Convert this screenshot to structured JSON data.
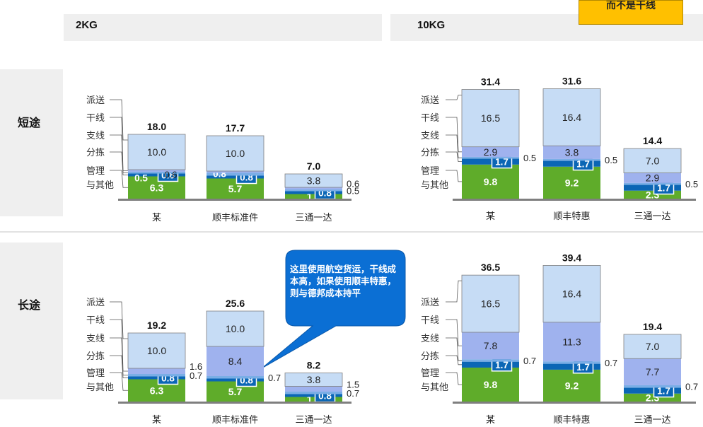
{
  "header": {
    "note": "而不是干线",
    "columns": [
      "2KG",
      "10KG"
    ],
    "rows": [
      "短途",
      "长途"
    ]
  },
  "legend_labels": [
    "派送",
    "干线",
    "支线",
    "分拣",
    "管理",
    "与其他"
  ],
  "callout": "这里使用航空货运，干线成本高，如果使用顺丰特惠，则与德邦成本持平",
  "colors": {
    "mgmt": "#5fac2a",
    "sort": "#0b66b5",
    "branch": "#7aaee6",
    "trunk": "#9fb2ee",
    "delivery": "#c6dcf5",
    "baseline": "#7f7f7f",
    "callout": "#0b6fd4"
  },
  "chart_data": [
    {
      "type": "bar",
      "stacked": true,
      "panel": "2KG-短途",
      "categories": [
        "某",
        "顺丰标准件",
        "三通一达"
      ],
      "totals": [
        "18.0",
        "17.7",
        "7.0"
      ],
      "series": [
        {
          "key": "mgmt",
          "values": [
            6.3,
            5.7,
            1.3
          ],
          "labels": [
            "6.3",
            "5.7",
            "1.3"
          ]
        },
        {
          "key": "sort",
          "values": [
            0.8,
            0.8,
            0.8
          ],
          "labels": [
            "0.8",
            "0.8",
            "0.8"
          ]
        },
        {
          "key": "branch",
          "values": [
            0.5,
            0.8,
            0.5
          ],
          "labels": [
            "0.5",
            "0.8",
            "0.5"
          ]
        },
        {
          "key": "trunk",
          "values": [
            0.6,
            0.5,
            0.6
          ],
          "labels": [
            "0.6",
            "0.5",
            "0.6"
          ]
        },
        {
          "key": "delivery",
          "values": [
            10.0,
            10.0,
            3.8
          ],
          "labels": [
            "10.0",
            "10.0",
            "3.8"
          ]
        }
      ]
    },
    {
      "type": "bar",
      "stacked": true,
      "panel": "10KG-短途",
      "categories": [
        "某",
        "顺丰特惠",
        "三通一达"
      ],
      "totals": [
        "31.4",
        "31.6",
        "14.4"
      ],
      "series": [
        {
          "key": "mgmt",
          "values": [
            9.8,
            9.2,
            2.3
          ],
          "labels": [
            "9.8",
            "9.2",
            "2.3"
          ]
        },
        {
          "key": "sort",
          "values": [
            1.7,
            1.7,
            1.7
          ],
          "labels": [
            "1.7",
            "1.7",
            "1.7"
          ]
        },
        {
          "key": "branch",
          "values": [
            0.5,
            0.5,
            0.5
          ],
          "labels": [
            "0.5",
            "0.5",
            "0.5"
          ]
        },
        {
          "key": "trunk",
          "values": [
            2.9,
            3.8,
            2.9
          ],
          "labels": [
            "2.9",
            "3.8",
            "2.9"
          ]
        },
        {
          "key": "delivery",
          "values": [
            16.5,
            16.4,
            7.0
          ],
          "labels": [
            "16.5",
            "16.4",
            "7.0"
          ]
        }
      ]
    },
    {
      "type": "bar",
      "stacked": true,
      "panel": "2KG-长途",
      "categories": [
        "某",
        "顺丰标准件",
        "三通一达"
      ],
      "totals": [
        "19.2",
        "25.6",
        "8.2"
      ],
      "series": [
        {
          "key": "mgmt",
          "values": [
            6.3,
            5.7,
            1.3
          ],
          "labels": [
            "6.3",
            "5.7",
            "1.3"
          ]
        },
        {
          "key": "sort",
          "values": [
            0.8,
            0.8,
            0.8
          ],
          "labels": [
            "0.8",
            "0.8",
            "0.8"
          ]
        },
        {
          "key": "branch",
          "values": [
            0.7,
            0.7,
            0.7
          ],
          "labels": [
            "0.7",
            "0.7",
            "0.7"
          ]
        },
        {
          "key": "trunk",
          "values": [
            1.6,
            8.4,
            1.5
          ],
          "labels": [
            "1.6",
            "8.4",
            "1.5"
          ]
        },
        {
          "key": "delivery",
          "values": [
            10.0,
            10.0,
            3.8
          ],
          "labels": [
            "10.0",
            "10.0",
            "3.8"
          ]
        }
      ]
    },
    {
      "type": "bar",
      "stacked": true,
      "panel": "10KG-长途",
      "categories": [
        "某",
        "顺丰特惠",
        "三通一达"
      ],
      "totals": [
        "36.5",
        "39.4",
        "19.4"
      ],
      "series": [
        {
          "key": "mgmt",
          "values": [
            9.8,
            9.2,
            2.3
          ],
          "labels": [
            "9.8",
            "9.2",
            "2.3"
          ]
        },
        {
          "key": "sort",
          "values": [
            1.7,
            1.7,
            1.7
          ],
          "labels": [
            "1.7",
            "1.7",
            "1.7"
          ]
        },
        {
          "key": "branch",
          "values": [
            0.7,
            0.7,
            0.7
          ],
          "labels": [
            "0.7",
            "0.7",
            "0.7"
          ]
        },
        {
          "key": "trunk",
          "values": [
            7.8,
            11.3,
            7.7
          ],
          "labels": [
            "7.8",
            "11.3",
            "7.7"
          ]
        },
        {
          "key": "delivery",
          "values": [
            16.5,
            16.4,
            7.0
          ],
          "labels": [
            "16.5",
            "16.4",
            "7.0"
          ]
        }
      ]
    }
  ]
}
